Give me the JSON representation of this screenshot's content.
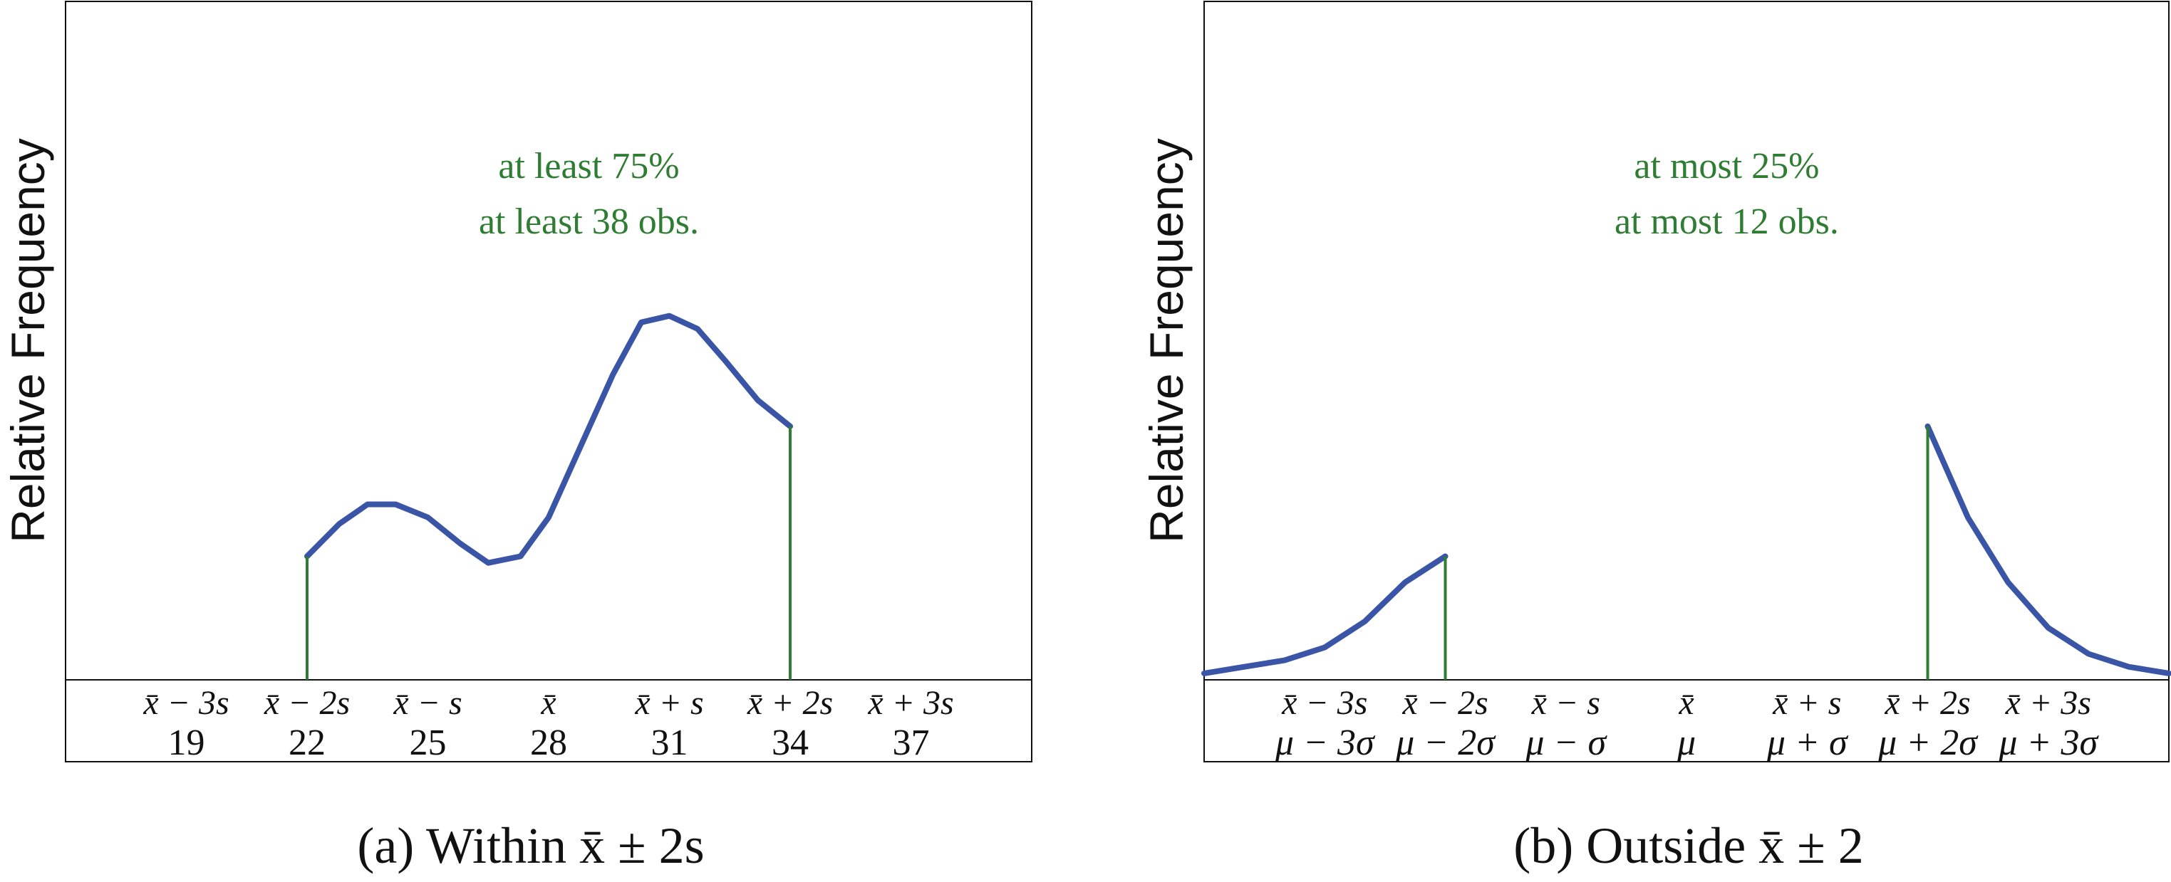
{
  "colors": {
    "curve": "#3a55a6",
    "marker": "#2e7d32",
    "annotation": "#2e7d32",
    "axis": "#111111"
  },
  "chart_data": [
    {
      "type": "line",
      "panel": "a",
      "caption": "(a) Within x̄ ± 2s",
      "ylabel": "Relative Frequency",
      "annotation": [
        "at least 75%",
        "at least 38 obs."
      ],
      "xlim": [
        16,
        40
      ],
      "ylim": [
        0,
        1
      ],
      "ticks": [
        {
          "x": 19,
          "label": "x̄ − 3s",
          "value": "19"
        },
        {
          "x": 22,
          "label": "x̄ − 2s",
          "value": "22"
        },
        {
          "x": 25,
          "label": "x̄ − s",
          "value": "25"
        },
        {
          "x": 28,
          "label": "x̄",
          "value": "28"
        },
        {
          "x": 31,
          "label": "x̄ + s",
          "value": "31"
        },
        {
          "x": 34,
          "label": "x̄ + 2s",
          "value": "34"
        },
        {
          "x": 37,
          "label": "x̄ + 3s",
          "value": "37"
        }
      ],
      "markers": [
        22,
        34
      ],
      "series": [
        {
          "x": [
            22,
            22.8,
            23.5,
            24.2,
            25,
            25.8,
            26.5,
            27.3,
            28,
            28.8,
            29.6,
            30.3,
            31,
            31.7,
            32.4,
            33.2,
            34
          ],
          "y": [
            0.19,
            0.24,
            0.27,
            0.27,
            0.25,
            0.21,
            0.18,
            0.19,
            0.25,
            0.36,
            0.47,
            0.55,
            0.56,
            0.54,
            0.49,
            0.43,
            0.39
          ]
        }
      ]
    },
    {
      "type": "line",
      "panel": "b",
      "caption": "(b) Outside x̄ ± 2",
      "ylabel": "Relative Frequency",
      "annotation": [
        "at most 25%",
        "at most 12 obs."
      ],
      "xlim": [
        16,
        40
      ],
      "ylim": [
        0,
        1
      ],
      "ticks": [
        {
          "x": 19,
          "label": "x̄ − 3s",
          "value": "μ − 3σ"
        },
        {
          "x": 22,
          "label": "x̄ − 2s",
          "value": "μ − 2σ"
        },
        {
          "x": 25,
          "label": "x̄ − s",
          "value": "μ − σ"
        },
        {
          "x": 28,
          "label": "x̄",
          "value": "μ"
        },
        {
          "x": 31,
          "label": "x̄ + s",
          "value": "μ + σ"
        },
        {
          "x": 34,
          "label": "x̄ + 2s",
          "value": "μ + 2σ"
        },
        {
          "x": 37,
          "label": "x̄ + 3s",
          "value": "μ + 3σ"
        }
      ],
      "markers": [
        22,
        34
      ],
      "series": [
        {
          "x": [
            16,
            17,
            18,
            19,
            20,
            21,
            22
          ],
          "y": [
            0.01,
            0.02,
            0.03,
            0.05,
            0.09,
            0.15,
            0.19
          ]
        },
        {
          "x": [
            34,
            35,
            36,
            37,
            38,
            39,
            40
          ],
          "y": [
            0.39,
            0.25,
            0.15,
            0.08,
            0.04,
            0.02,
            0.01
          ]
        }
      ]
    }
  ]
}
